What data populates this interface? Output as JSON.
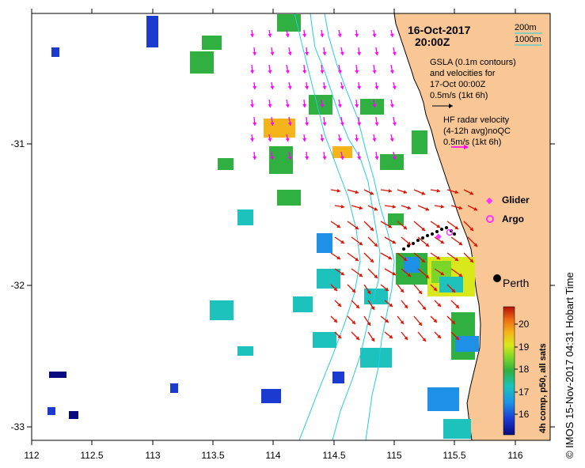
{
  "title": {
    "date": "16-Oct-2017",
    "time": "20:00Z"
  },
  "isobaths": [
    "200m",
    "1000m"
  ],
  "gsla_note": {
    "line1": "GSLA (0.1m contours)",
    "line2": "and velocities for",
    "line3": "17-Oct 00:00Z",
    "scale": "0.5m/s (1kt 6h)"
  },
  "radar_note": {
    "line1": "HF radar velocity",
    "line2": "(4-12h avg)noQC",
    "scale": "0.5m/s (1kt 6h)"
  },
  "legend": {
    "glider": "Glider",
    "argo": "Argo"
  },
  "city": "Perth",
  "colorbar": {
    "label": "4h comp, p50, all sats",
    "ticks": [
      "16",
      "17",
      "18",
      "19",
      "20"
    ]
  },
  "credit": "©  IMOS 15-Nov-2017 04:31 Hobart Time",
  "axes": {
    "x_ticks": [
      "112",
      "112.5",
      "113",
      "113.5",
      "114",
      "114.5",
      "115",
      "115.5",
      "116"
    ],
    "y_ticks": [
      "-31",
      "-32",
      "-33"
    ]
  },
  "colors": {
    "land": "#f9c796",
    "arrow_radar": "#ff00ff",
    "arrow_gsla": "#dd1100",
    "isobath": "#22ccdd",
    "glider": "#ff33ff",
    "argo": "#ff33ff"
  }
}
